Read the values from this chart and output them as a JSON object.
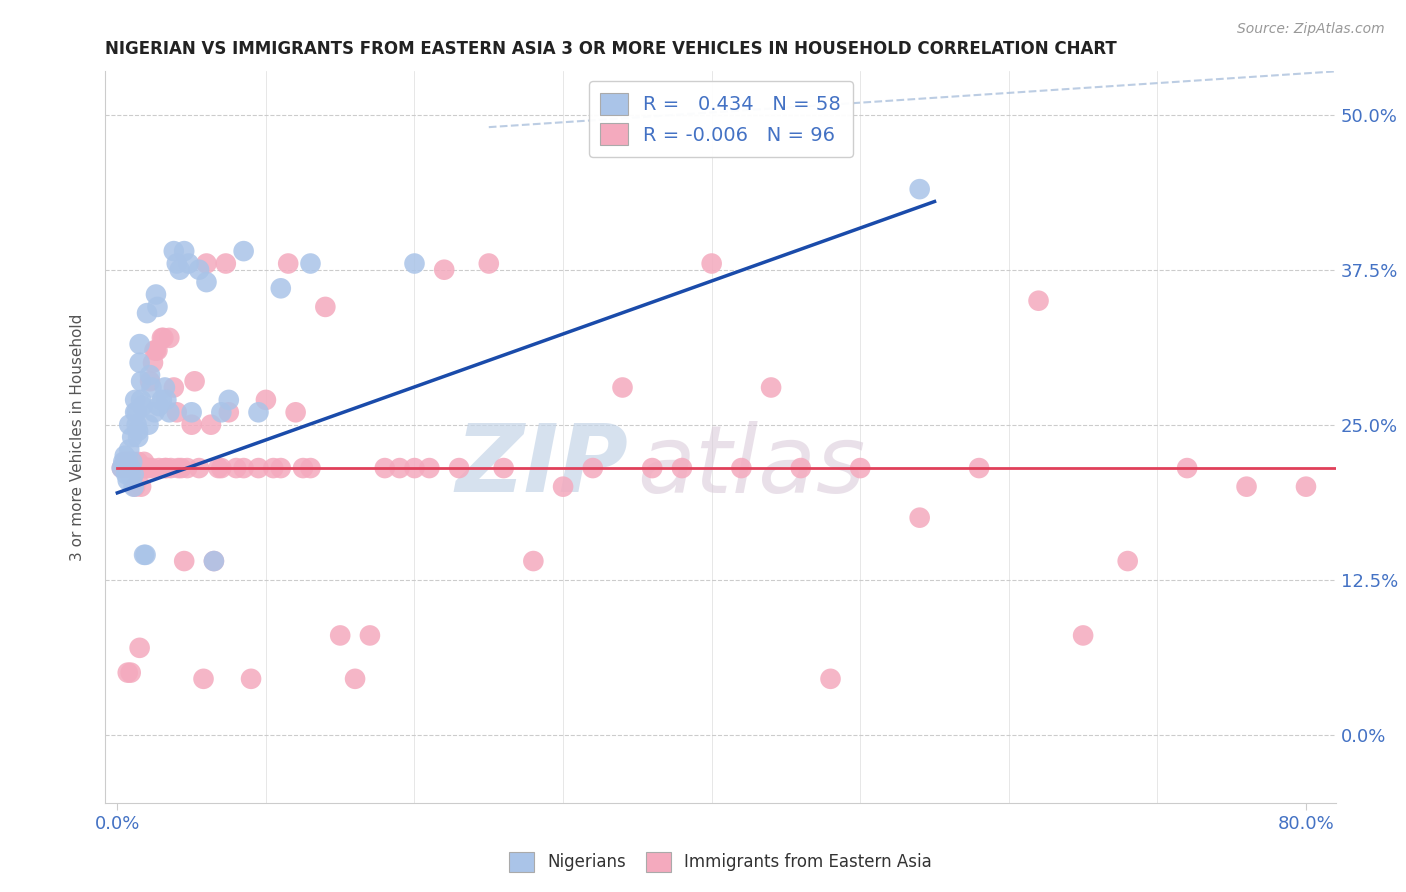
{
  "title": "NIGERIAN VS IMMIGRANTS FROM EASTERN ASIA 3 OR MORE VEHICLES IN HOUSEHOLD CORRELATION CHART",
  "source": "Source: ZipAtlas.com",
  "ylabel": "3 or more Vehicles in Household",
  "xlim": [
    -0.008,
    0.82
  ],
  "ylim": [
    -0.055,
    0.535
  ],
  "nigerian_R": 0.434,
  "nigerian_N": 58,
  "eastern_asia_R": -0.006,
  "eastern_asia_N": 96,
  "nigerian_color": "#aac4e8",
  "eastern_asia_color": "#f4aabe",
  "nigerian_line_color": "#1a4baa",
  "eastern_asia_line_color": "#e0405a",
  "legend_label_1": "Nigerians",
  "legend_label_2": "Immigrants from Eastern Asia",
  "watermark_zip": "ZIP",
  "watermark_atlas": "atlas",
  "y_ticks": [
    0.0,
    0.125,
    0.25,
    0.375,
    0.5
  ],
  "y_tick_labels": [
    "0.0%",
    "12.5%",
    "25.0%",
    "37.5%",
    "50.0%"
  ],
  "nig_x": [
    0.003,
    0.004,
    0.005,
    0.006,
    0.006,
    0.007,
    0.007,
    0.007,
    0.008,
    0.008,
    0.009,
    0.009,
    0.01,
    0.01,
    0.011,
    0.011,
    0.012,
    0.012,
    0.013,
    0.013,
    0.014,
    0.014,
    0.015,
    0.015,
    0.016,
    0.016,
    0.017,
    0.018,
    0.019,
    0.02,
    0.021,
    0.022,
    0.023,
    0.025,
    0.026,
    0.027,
    0.028,
    0.03,
    0.032,
    0.033,
    0.035,
    0.038,
    0.04,
    0.042,
    0.045,
    0.048,
    0.05,
    0.055,
    0.06,
    0.065,
    0.07,
    0.075,
    0.085,
    0.095,
    0.11,
    0.13,
    0.2,
    0.54
  ],
  "nig_y": [
    0.215,
    0.22,
    0.225,
    0.215,
    0.21,
    0.22,
    0.215,
    0.205,
    0.25,
    0.23,
    0.215,
    0.21,
    0.24,
    0.22,
    0.21,
    0.2,
    0.27,
    0.26,
    0.26,
    0.25,
    0.245,
    0.24,
    0.315,
    0.3,
    0.285,
    0.27,
    0.265,
    0.145,
    0.145,
    0.34,
    0.25,
    0.29,
    0.28,
    0.26,
    0.355,
    0.345,
    0.265,
    0.27,
    0.28,
    0.27,
    0.26,
    0.39,
    0.38,
    0.375,
    0.39,
    0.38,
    0.26,
    0.375,
    0.365,
    0.14,
    0.26,
    0.27,
    0.39,
    0.26,
    0.36,
    0.38,
    0.38,
    0.44
  ],
  "east_x": [
    0.003,
    0.005,
    0.006,
    0.007,
    0.007,
    0.008,
    0.009,
    0.01,
    0.011,
    0.012,
    0.012,
    0.013,
    0.014,
    0.015,
    0.015,
    0.016,
    0.016,
    0.017,
    0.018,
    0.019,
    0.02,
    0.02,
    0.021,
    0.022,
    0.023,
    0.024,
    0.025,
    0.026,
    0.027,
    0.028,
    0.03,
    0.031,
    0.032,
    0.033,
    0.035,
    0.036,
    0.038,
    0.04,
    0.041,
    0.043,
    0.045,
    0.047,
    0.05,
    0.052,
    0.055,
    0.058,
    0.06,
    0.063,
    0.065,
    0.068,
    0.07,
    0.073,
    0.075,
    0.08,
    0.085,
    0.09,
    0.095,
    0.1,
    0.105,
    0.11,
    0.115,
    0.12,
    0.125,
    0.13,
    0.14,
    0.15,
    0.16,
    0.17,
    0.18,
    0.19,
    0.2,
    0.21,
    0.22,
    0.23,
    0.25,
    0.26,
    0.28,
    0.3,
    0.32,
    0.34,
    0.36,
    0.38,
    0.4,
    0.42,
    0.44,
    0.46,
    0.48,
    0.5,
    0.54,
    0.58,
    0.62,
    0.65,
    0.68,
    0.72,
    0.76,
    0.8
  ],
  "east_y": [
    0.215,
    0.22,
    0.215,
    0.05,
    0.22,
    0.22,
    0.05,
    0.215,
    0.22,
    0.215,
    0.2,
    0.215,
    0.22,
    0.07,
    0.215,
    0.215,
    0.2,
    0.215,
    0.22,
    0.215,
    0.215,
    0.215,
    0.215,
    0.285,
    0.215,
    0.3,
    0.31,
    0.31,
    0.31,
    0.215,
    0.32,
    0.32,
    0.215,
    0.215,
    0.32,
    0.215,
    0.28,
    0.26,
    0.215,
    0.215,
    0.14,
    0.215,
    0.25,
    0.285,
    0.215,
    0.045,
    0.38,
    0.25,
    0.14,
    0.215,
    0.215,
    0.38,
    0.26,
    0.215,
    0.215,
    0.045,
    0.215,
    0.27,
    0.215,
    0.215,
    0.38,
    0.26,
    0.215,
    0.215,
    0.345,
    0.08,
    0.045,
    0.08,
    0.215,
    0.215,
    0.215,
    0.215,
    0.375,
    0.215,
    0.38,
    0.215,
    0.14,
    0.2,
    0.215,
    0.28,
    0.215,
    0.215,
    0.38,
    0.215,
    0.28,
    0.215,
    0.045,
    0.215,
    0.175,
    0.215,
    0.35,
    0.08,
    0.14,
    0.215,
    0.2,
    0.2
  ],
  "nig_line_x0": 0.0,
  "nig_line_y0": 0.195,
  "nig_line_x1": 0.55,
  "nig_line_y1": 0.43,
  "east_line_x0": 0.0,
  "east_line_y0": 0.215,
  "east_line_x1": 0.82,
  "east_line_y1": 0.215,
  "dash_line_x0": 0.25,
  "dash_line_y0": 0.49,
  "dash_line_x1": 0.82,
  "dash_line_y1": 0.535
}
